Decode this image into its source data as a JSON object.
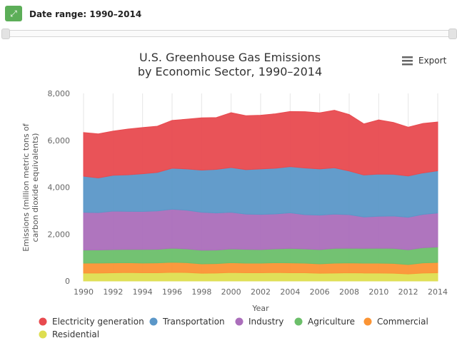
{
  "header": {
    "expand_icon": "expand-arrows-icon",
    "date_range_label": "Date range: 1990–2014",
    "slider_range": [
      1990,
      2014
    ]
  },
  "export": {
    "label": "Export",
    "icon": "hamburger-menu-icon"
  },
  "chart_data": {
    "type": "area",
    "stacked": true,
    "title": [
      "U.S. Greenhouse Gas Emissions",
      "by Economic Sector, 1990–2014"
    ],
    "xlabel": "Year",
    "ylabel": [
      "Emissions (million metric tons of",
      "carbon dioxide equivalents)"
    ],
    "ylim": [
      0,
      8000
    ],
    "yticks": [
      "0",
      "2,000",
      "4,000",
      "6,000",
      "8,000"
    ],
    "ytick_values": [
      0,
      2000,
      4000,
      6000,
      8000
    ],
    "xticks": [
      "1990",
      "1992",
      "1994",
      "1996",
      "1998",
      "2000",
      "2002",
      "2004",
      "2006",
      "2008",
      "2010",
      "2012",
      "2014"
    ],
    "grid": "vertical",
    "legend_position": "bottom",
    "x": [
      1990,
      1991,
      1992,
      1993,
      1994,
      1995,
      1996,
      1997,
      1998,
      1999,
      2000,
      2001,
      2002,
      2003,
      2004,
      2005,
      2006,
      2007,
      2008,
      2009,
      2010,
      2011,
      2012,
      2013,
      2014
    ],
    "series": [
      {
        "name": "Residential",
        "color": "#dede50",
        "values": [
          340,
          340,
          350,
          360,
          350,
          350,
          370,
          360,
          330,
          340,
          360,
          350,
          350,
          360,
          350,
          350,
          330,
          340,
          350,
          340,
          340,
          330,
          300,
          340,
          350
        ]
      },
      {
        "name": "Commercial",
        "color": "#fb9434",
        "values": [
          420,
          425,
          420,
          420,
          415,
          420,
          430,
          420,
          400,
          400,
          420,
          410,
          410,
          420,
          420,
          410,
          400,
          420,
          420,
          420,
          420,
          420,
          400,
          430,
          440
        ]
      },
      {
        "name": "Agriculture",
        "color": "#6cbf6a",
        "values": [
          560,
          560,
          570,
          570,
          580,
          580,
          600,
          590,
          580,
          580,
          590,
          590,
          580,
          590,
          620,
          610,
          610,
          630,
          630,
          630,
          640,
          640,
          630,
          650,
          660
        ]
      },
      {
        "name": "Industry",
        "color": "#ab6ebb",
        "values": [
          1610,
          1590,
          1640,
          1620,
          1620,
          1640,
          1660,
          1650,
          1620,
          1580,
          1560,
          1500,
          1500,
          1490,
          1520,
          1460,
          1470,
          1460,
          1430,
          1340,
          1360,
          1380,
          1390,
          1420,
          1450
        ]
      },
      {
        "name": "Transportation",
        "color": "#5b97c8",
        "values": [
          1540,
          1480,
          1530,
          1560,
          1610,
          1640,
          1750,
          1760,
          1800,
          1860,
          1910,
          1900,
          1940,
          1950,
          1970,
          1990,
          1970,
          1980,
          1860,
          1790,
          1800,
          1780,
          1760,
          1770,
          1800
        ]
      },
      {
        "name": "Electricity generation",
        "color": "#e84a4f",
        "values": [
          1860,
          1880,
          1880,
          1950,
          1970,
          1970,
          2040,
          2120,
          2230,
          2210,
          2340,
          2300,
          2290,
          2320,
          2350,
          2400,
          2390,
          2450,
          2410,
          2180,
          2310,
          2210,
          2080,
          2110,
          2080
        ]
      }
    ]
  }
}
